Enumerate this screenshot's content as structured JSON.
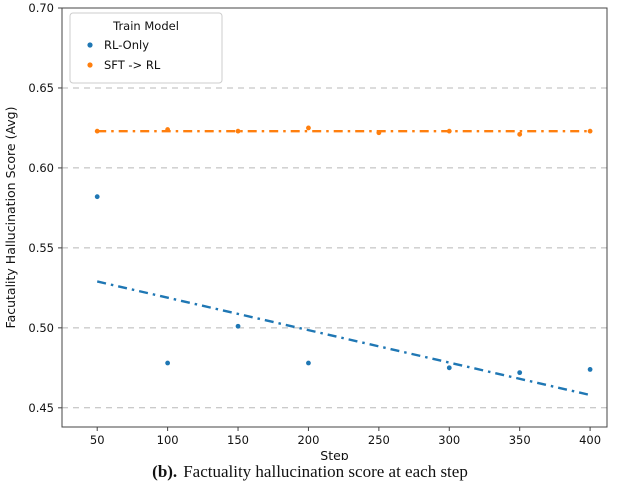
{
  "caption": {
    "label": "(b).",
    "text": "Factuality hallucination score at each step"
  },
  "chart_data": {
    "type": "scatter",
    "title": "",
    "xlabel": "Step",
    "ylabel": "Facutality Hallucination Score (Avg)",
    "xlim": [
      25,
      412
    ],
    "ylim": [
      0.438,
      0.7
    ],
    "xticks": [
      50,
      100,
      150,
      200,
      250,
      300,
      350,
      400
    ],
    "yticks": [
      0.45,
      0.5,
      0.55,
      0.6,
      0.65,
      0.7
    ],
    "grid": "horizontal-dashed",
    "grid_color": "#b8b8b8",
    "legend": {
      "title": "Train Model",
      "position": "upper-left"
    },
    "series": [
      {
        "name": "RL-Only",
        "color": "#1f77b4",
        "marker": "dot",
        "x": [
          50,
          100,
          150,
          200,
          300,
          350,
          400
        ],
        "y": [
          0.582,
          0.478,
          0.501,
          0.478,
          0.475,
          0.472,
          0.474
        ],
        "trend": {
          "style": "dashdot",
          "x": [
            50,
            400
          ],
          "y": [
            0.529,
            0.458
          ]
        }
      },
      {
        "name": "SFT -> RL",
        "color": "#ff7f0e",
        "marker": "dot",
        "x": [
          50,
          100,
          150,
          200,
          250,
          300,
          350,
          400
        ],
        "y": [
          0.623,
          0.624,
          0.623,
          0.625,
          0.622,
          0.623,
          0.621,
          0.623
        ],
        "trend": {
          "style": "dashdot",
          "x": [
            50,
            400
          ],
          "y": [
            0.623,
            0.623
          ]
        }
      }
    ]
  }
}
